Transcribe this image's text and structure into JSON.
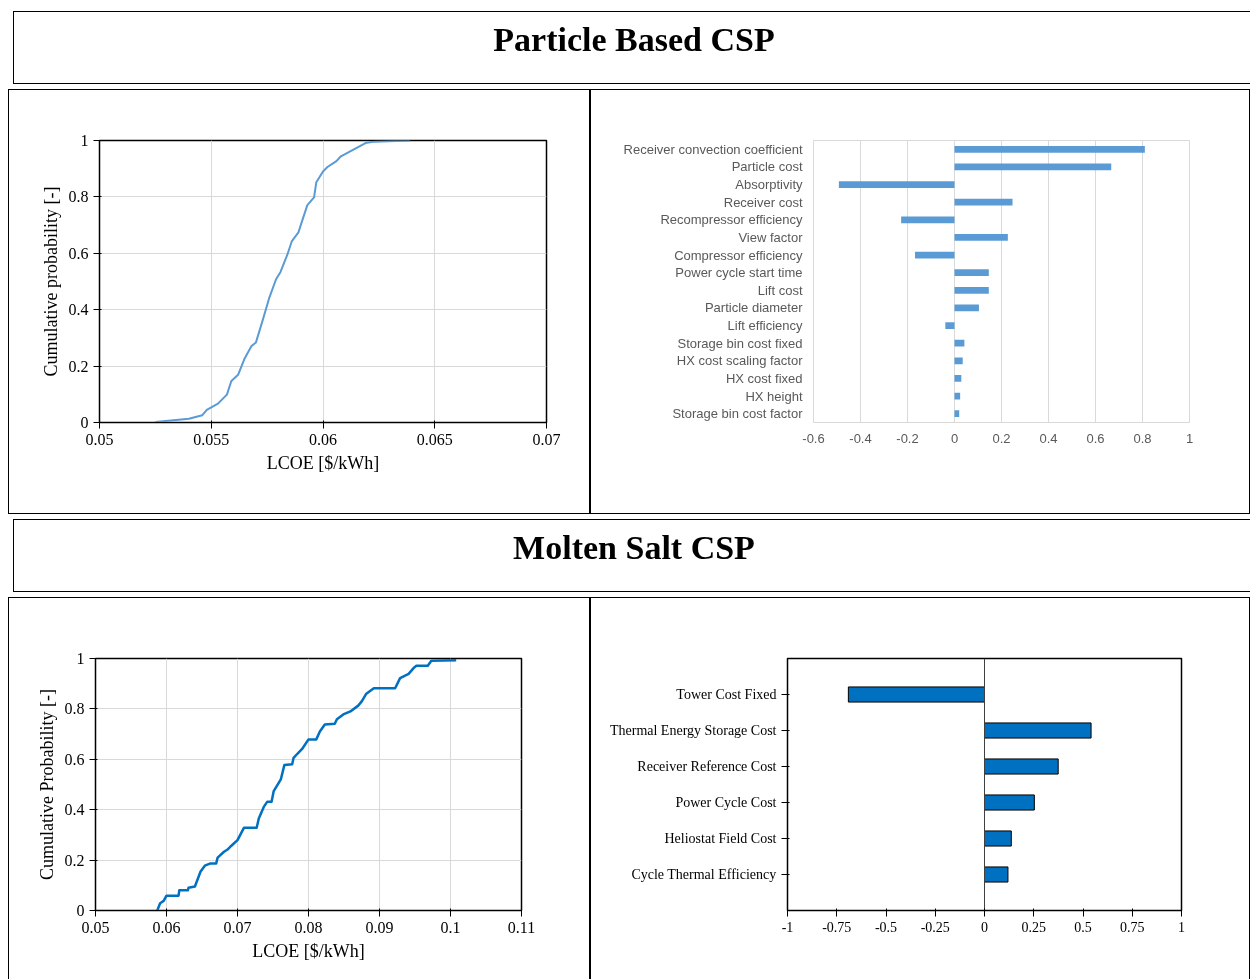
{
  "chart_data": [
    {
      "type": "line",
      "title": "Particle Based CSP",
      "xlabel": "LCOE [$/kWh]",
      "ylabel": "Cumulative probability [-]",
      "color": "#5b9bd5",
      "grid": true,
      "xlim": [
        0.05,
        0.07
      ],
      "ylim": [
        0,
        1
      ],
      "xticks": [
        0.05,
        0.055,
        0.06,
        0.065,
        0.07
      ],
      "yticks": [
        0,
        0.2,
        0.4,
        0.6,
        0.8,
        1
      ],
      "x": [
        0.0525,
        0.054,
        0.0546,
        0.0548,
        0.0553,
        0.0557,
        0.0559,
        0.0562,
        0.0565,
        0.0568,
        0.057,
        0.0573,
        0.0576,
        0.0579,
        0.0581,
        0.0584,
        0.0586,
        0.0589,
        0.0591,
        0.0593,
        0.0596,
        0.0597,
        0.06,
        0.0602,
        0.0606,
        0.0608,
        0.0613,
        0.0619,
        0.0623,
        0.0639
      ],
      "values": [
        0.002,
        0.013,
        0.026,
        0.045,
        0.067,
        0.099,
        0.147,
        0.169,
        0.228,
        0.271,
        0.284,
        0.362,
        0.443,
        0.508,
        0.534,
        0.594,
        0.642,
        0.674,
        0.723,
        0.771,
        0.798,
        0.852,
        0.89,
        0.906,
        0.927,
        0.944,
        0.965,
        0.991,
        0.996,
        1.0
      ]
    },
    {
      "type": "bar",
      "orientation": "horizontal",
      "color": "#5b9bd5",
      "grid": "x",
      "xlim": [
        -0.6,
        1
      ],
      "xticks": [
        -0.6,
        -0.4,
        -0.2,
        0,
        0.2,
        0.4,
        0.6,
        0.8,
        1
      ],
      "categories": [
        "Receiver convection coefficient",
        "Particle cost",
        "Absorptivity",
        "Receiver cost",
        "Recompressor efficiency",
        "View factor",
        "Compressor efficiency",
        "Power cycle start time",
        "Lift cost",
        "Particle diameter",
        "Lift efficiency",
        "Storage bin cost fixed",
        "HX cost scaling factor",
        "HX cost fixed",
        "HX height",
        "Storage bin cost factor"
      ],
      "values": [
        0.81,
        0.667,
        -0.492,
        0.247,
        -0.227,
        0.227,
        -0.168,
        0.146,
        0.146,
        0.104,
        -0.039,
        0.042,
        0.035,
        0.029,
        0.024,
        0.02
      ]
    },
    {
      "type": "line",
      "title": "Molten Salt CSP",
      "xlabel": "LCOE [$/kWh]",
      "ylabel": "Cumulative Probability [-]",
      "color": "#0070c0",
      "grid": true,
      "xlim": [
        0.05,
        0.11
      ],
      "ylim": [
        0,
        1
      ],
      "xticks": [
        0.05,
        0.06,
        0.07,
        0.08,
        0.09,
        0.1,
        0.11
      ],
      "yticks": [
        0,
        0.2,
        0.4,
        0.6,
        0.8,
        1
      ],
      "x": [
        0.0587,
        0.0591,
        0.0596,
        0.06,
        0.0617,
        0.0618,
        0.063,
        0.0631,
        0.064,
        0.0648,
        0.0654,
        0.0662,
        0.067,
        0.0672,
        0.0681,
        0.0686,
        0.0691,
        0.07,
        0.0709,
        0.0727,
        0.073,
        0.0737,
        0.0742,
        0.0748,
        0.0751,
        0.0761,
        0.0766,
        0.0777,
        0.0779,
        0.0784,
        0.0791,
        0.08,
        0.0811,
        0.0816,
        0.0823,
        0.0837,
        0.084,
        0.0849,
        0.0859,
        0.087,
        0.0875,
        0.0881,
        0.0892,
        0.0922,
        0.0929,
        0.0941,
        0.0948,
        0.0952,
        0.0968,
        0.0973,
        0.1008
      ],
      "values": [
        0,
        0.029,
        0.038,
        0.059,
        0.059,
        0.08,
        0.08,
        0.09,
        0.095,
        0.155,
        0.178,
        0.187,
        0.187,
        0.21,
        0.233,
        0.242,
        0.256,
        0.279,
        0.328,
        0.328,
        0.365,
        0.411,
        0.432,
        0.432,
        0.474,
        0.52,
        0.577,
        0.58,
        0.606,
        0.621,
        0.641,
        0.679,
        0.679,
        0.71,
        0.738,
        0.741,
        0.759,
        0.778,
        0.79,
        0.813,
        0.83,
        0.859,
        0.882,
        0.882,
        0.922,
        0.939,
        0.962,
        0.971,
        0.971,
        0.991,
        0.993
      ]
    },
    {
      "type": "bar",
      "orientation": "horizontal",
      "color": "#0070c0",
      "xlim": [
        -1,
        1
      ],
      "xticks": [
        -1,
        -0.75,
        -0.5,
        -0.25,
        0,
        0.25,
        0.5,
        0.75,
        1
      ],
      "categories": [
        "Tower Cost Fixed",
        "Thermal Energy Storage Cost",
        "Receiver Reference Cost",
        "Power Cycle Cost",
        "Heliostat Field Cost",
        "Cycle Thermal Efficiency"
      ],
      "values": [
        -0.691,
        0.541,
        0.374,
        0.253,
        0.136,
        0.119
      ],
      "ref_lines": [
        {
          "axis": "x",
          "value": 0
        }
      ]
    }
  ]
}
